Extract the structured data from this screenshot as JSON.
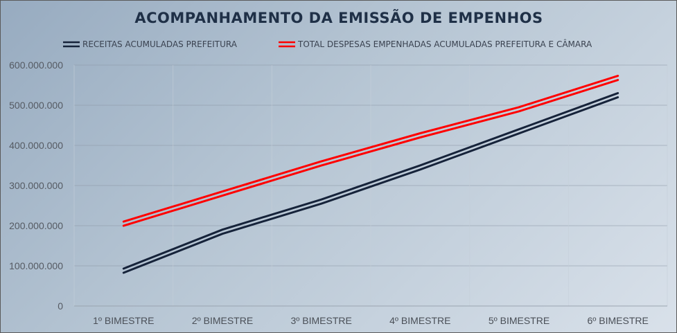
{
  "chart_data": {
    "type": "line",
    "title": "ACOMPANHAMENTO DA EMISSÃO DE EMPENHOS",
    "categories": [
      "1º BIMESTRE",
      "2º BIMESTRE",
      "3º BIMESTRE",
      "4º BIMESTRE",
      "5º BIMESTRE",
      "6º BIMESTRE"
    ],
    "series": [
      {
        "name": "RECEITAS ACUMULADAS PREFEITURA",
        "color": "#16233a",
        "values": [
          88000000,
          185000000,
          260000000,
          345000000,
          435000000,
          525000000
        ]
      },
      {
        "name": "TOTAL DESPESAS EMPENHADAS ACUMULADAS PREFEITURA E CÂMARA",
        "color": "#ff0000",
        "values": [
          205000000,
          280000000,
          355000000,
          425000000,
          490000000,
          568000000
        ]
      }
    ],
    "yticks": [
      "0",
      "100.000.000",
      "200.000.000",
      "300.000.000",
      "400.000.000",
      "500.000.000",
      "600.000.000"
    ],
    "ylim": [
      0,
      600000000
    ],
    "xlabel": "",
    "ylabel": "",
    "grid": true,
    "legend_position": "top"
  }
}
